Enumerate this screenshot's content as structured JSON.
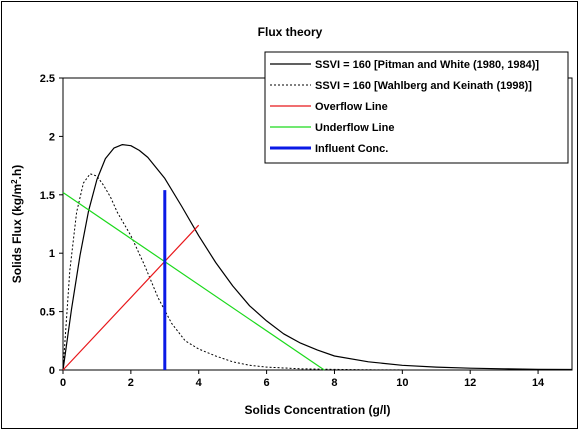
{
  "chart_data": {
    "type": "line",
    "title": "Flux theory",
    "xlabel": "Solids Concentration (g/l)",
    "ylabel": {
      "main": "Solids  Flux (kg/m",
      "sup": "2",
      "tail": ".h)"
    },
    "xlim": [
      0,
      15
    ],
    "ylim": [
      0,
      2.5
    ],
    "xticks": [
      0,
      2,
      4,
      6,
      8,
      10,
      12,
      14
    ],
    "yticks": [
      0,
      0.5,
      1,
      1.5,
      2,
      2.5
    ],
    "ytick_labels": [
      "0",
      "0.5",
      "1",
      "1.5",
      "2",
      "2.5"
    ],
    "grid": false,
    "legend_position": "top-right",
    "series": [
      {
        "name": "SSVI = 160 [Pitman and White (1980, 1984)]",
        "color": "#000000",
        "style": "solid",
        "x": [
          0,
          0.25,
          0.5,
          0.75,
          1.0,
          1.25,
          1.5,
          1.75,
          2.0,
          2.25,
          2.5,
          3.0,
          3.5,
          4.0,
          4.5,
          5.0,
          5.5,
          6.0,
          6.5,
          7.0,
          7.5,
          8.0,
          9.0,
          10.0,
          11.0,
          12.0,
          13.0,
          14.0,
          15.0
        ],
        "y": [
          0,
          0.52,
          0.98,
          1.36,
          1.63,
          1.81,
          1.9,
          1.93,
          1.92,
          1.88,
          1.82,
          1.64,
          1.4,
          1.15,
          0.92,
          0.72,
          0.55,
          0.42,
          0.31,
          0.23,
          0.17,
          0.12,
          0.07,
          0.04,
          0.025,
          0.015,
          0.01,
          0.006,
          0.004
        ]
      },
      {
        "name": "SSVI = 160 [Wahlberg and Keinath (1998)]",
        "color": "#000000",
        "style": "dotted",
        "x": [
          0,
          0.2,
          0.4,
          0.6,
          0.8,
          1.0,
          1.2,
          1.4,
          1.6,
          1.8,
          2.0,
          2.4,
          2.8,
          3.2,
          3.6,
          4.0,
          4.5,
          5.0,
          5.5,
          6.0,
          7.0,
          8.0,
          9.0,
          10.0
        ],
        "y": [
          0,
          0.85,
          1.35,
          1.6,
          1.68,
          1.66,
          1.58,
          1.48,
          1.35,
          1.25,
          1.15,
          0.9,
          0.62,
          0.4,
          0.25,
          0.18,
          0.12,
          0.07,
          0.04,
          0.025,
          0.01,
          0.005,
          0.002,
          0.001
        ]
      },
      {
        "name": "Overflow Line",
        "color": "#e8171b",
        "style": "solid",
        "x": [
          0,
          4
        ],
        "y": [
          0,
          1.24
        ]
      },
      {
        "name": "Underflow Line",
        "color": "#1cd91c",
        "style": "solid",
        "x": [
          0,
          7.7
        ],
        "y": [
          1.52,
          0
        ]
      },
      {
        "name": "Influent Conc.",
        "color": "#0a1ae6",
        "style": "thick",
        "x": [
          3,
          3
        ],
        "y": [
          0,
          1.54
        ]
      }
    ]
  }
}
